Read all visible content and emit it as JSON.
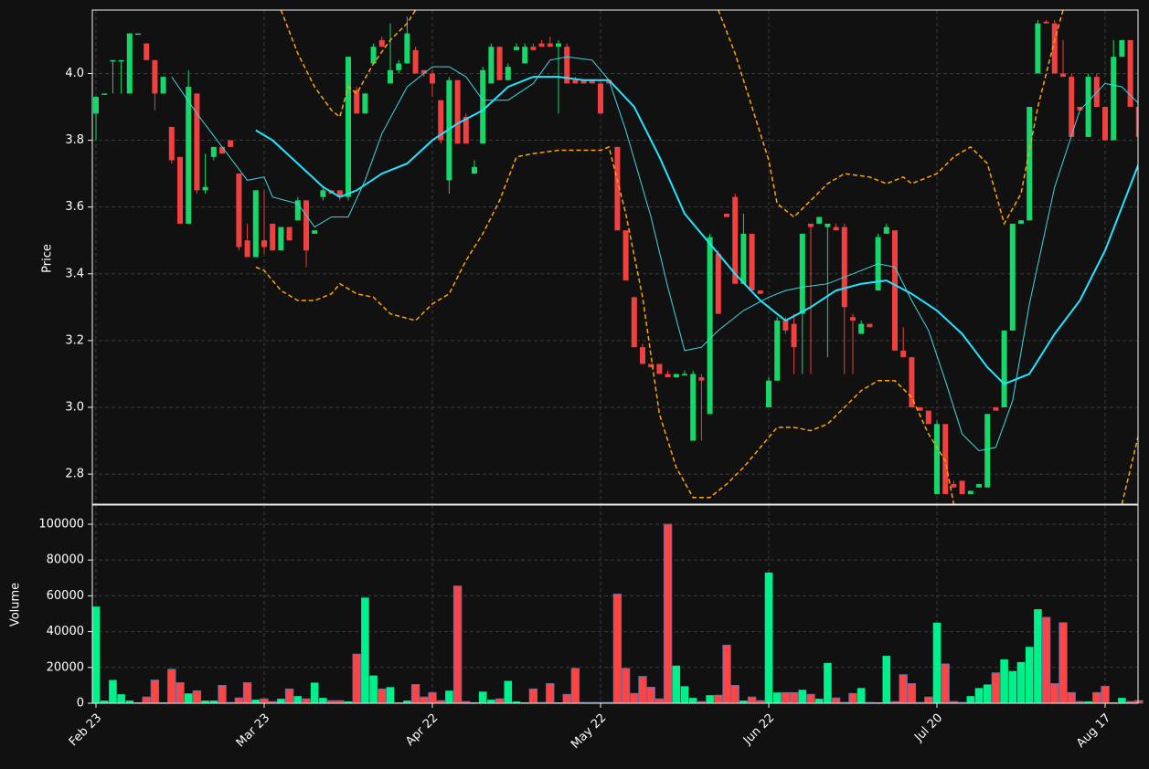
{
  "chart_data": {
    "type": "candlestick",
    "ylabel": "Price",
    "y2label": "Volume",
    "categories": [
      "Feb 23",
      null,
      null,
      null,
      null,
      null,
      null,
      null,
      null,
      null,
      null,
      null,
      null,
      null,
      null,
      null,
      null,
      null,
      null,
      null,
      "Mar 23",
      null,
      null,
      null,
      null,
      null,
      null,
      null,
      null,
      null,
      null,
      null,
      null,
      null,
      null,
      null,
      null,
      null,
      null,
      null,
      "Apr 22",
      null,
      null,
      null,
      null,
      null,
      null,
      null,
      null,
      null,
      null,
      null,
      null,
      null,
      null,
      null,
      null,
      null,
      null,
      null,
      "May 22",
      null,
      null,
      null,
      null,
      null,
      null,
      null,
      null,
      null,
      null,
      null,
      null,
      null,
      null,
      null,
      null,
      null,
      null,
      null,
      "Jun 22",
      null,
      null,
      null,
      null,
      null,
      null,
      null,
      null,
      null,
      null,
      null,
      null,
      null,
      null,
      null,
      null,
      null,
      null,
      null,
      "Jul 20",
      null,
      null,
      null,
      null,
      null,
      null,
      null,
      null,
      null,
      null,
      null,
      null,
      null,
      null,
      null,
      null,
      null,
      null,
      null,
      "Aug 17",
      null,
      null,
      null,
      null
    ],
    "open": [
      3.88,
      3.94,
      4.04,
      4.04,
      3.94,
      4.12,
      4.09,
      4.04,
      3.94,
      3.84,
      3.75,
      3.55,
      3.94,
      3.65,
      3.75,
      3.78,
      3.8,
      3.7,
      3.5,
      3.45,
      3.5,
      3.55,
      3.47,
      3.54,
      3.56,
      3.62,
      3.52,
      3.63,
      3.65,
      3.65,
      3.63,
      3.95,
      3.88,
      4.03,
      4.1,
      3.97,
      4.01,
      4.03,
      4.07,
      4.01,
      4.0,
      3.92,
      3.68,
      3.98,
      3.87,
      3.7,
      3.79,
      3.97,
      4.08,
      3.98,
      4.07,
      4.03,
      4.08,
      4.09,
      4.09,
      4.08,
      4.08,
      3.98,
      3.98,
      3.98,
      3.97,
      3.98,
      3.78,
      3.53,
      3.33,
      3.18,
      3.13,
      3.13,
      3.1,
      3.09,
      3.1,
      2.9,
      3.09,
      2.98,
      3.46,
      3.58,
      3.63,
      3.37,
      3.52,
      3.35,
      3.0,
      3.08,
      3.26,
      3.25,
      3.28,
      3.55,
      3.55,
      3.54,
      3.54,
      3.54,
      3.27,
      3.22,
      3.25,
      3.35,
      3.52,
      3.53,
      3.17,
      3.15,
      3.0,
      2.99,
      2.74,
      2.95,
      2.77,
      2.78,
      2.74,
      2.76,
      2.76,
      3.0,
      3.0,
      3.23,
      3.55,
      3.56,
      4.0,
      4.155,
      4.15,
      4.0,
      3.99,
      3.9,
      3.81,
      3.99,
      3.9,
      3.8,
      4.05,
      4.1,
      3.9
    ],
    "high": [
      3.93,
      3.94,
      4.04,
      4.04,
      4.12,
      4.12,
      4.09,
      4.04,
      3.99,
      3.84,
      3.75,
      4.01,
      3.94,
      3.76,
      3.78,
      3.78,
      3.8,
      3.7,
      3.55,
      3.65,
      3.65,
      3.55,
      3.54,
      3.54,
      3.63,
      3.62,
      3.53,
      3.66,
      3.65,
      3.65,
      4.05,
      3.96,
      3.94,
      4.09,
      4.11,
      4.15,
      4.04,
      4.17,
      4.08,
      4.01,
      4.01,
      3.92,
      3.99,
      3.98,
      3.88,
      3.74,
      4.02,
      4.09,
      4.08,
      4.03,
      4.09,
      4.09,
      4.09,
      4.1,
      4.11,
      4.1,
      4.09,
      3.99,
      3.98,
      3.98,
      3.98,
      3.98,
      3.78,
      3.53,
      3.33,
      3.19,
      3.13,
      3.13,
      3.11,
      3.1,
      3.11,
      3.11,
      3.1,
      3.52,
      3.47,
      3.58,
      3.64,
      3.58,
      3.52,
      3.35,
      3.09,
      3.27,
      3.27,
      3.28,
      3.52,
      3.55,
      3.57,
      3.55,
      3.55,
      3.55,
      3.28,
      3.26,
      3.25,
      3.52,
      3.55,
      3.53,
      3.24,
      3.15,
      3.0,
      2.99,
      2.96,
      2.95,
      2.78,
      2.78,
      2.75,
      2.77,
      2.98,
      3.0,
      3.23,
      3.55,
      3.56,
      3.9,
      4.16,
      4.16,
      4.16,
      4.1,
      4.0,
      3.9,
      4.0,
      4.0,
      3.9,
      4.1,
      4.1,
      4.1,
      3.91
    ],
    "low": [
      3.8,
      3.94,
      3.94,
      3.94,
      3.94,
      4.12,
      4.04,
      3.89,
      3.94,
      3.73,
      3.55,
      3.55,
      3.64,
      3.64,
      3.74,
      3.76,
      3.78,
      3.47,
      3.45,
      3.45,
      3.46,
      3.47,
      3.47,
      3.5,
      3.56,
      3.42,
      3.52,
      3.62,
      3.64,
      3.62,
      3.62,
      3.88,
      3.88,
      4.03,
      4.08,
      3.97,
      4.0,
      4.03,
      4.0,
      3.99,
      3.93,
      3.79,
      3.64,
      3.79,
      3.79,
      3.7,
      3.79,
      3.97,
      3.98,
      3.98,
      4.07,
      4.03,
      4.07,
      4.08,
      4.08,
      3.88,
      3.97,
      3.97,
      3.97,
      3.97,
      3.88,
      3.97,
      3.53,
      3.38,
      3.18,
      3.13,
      3.12,
      3.1,
      3.09,
      3.09,
      3.1,
      2.9,
      2.9,
      2.98,
      3.28,
      3.57,
      3.37,
      3.37,
      3.35,
      3.34,
      3.0,
      3.08,
      3.22,
      3.1,
      3.1,
      3.1,
      3.55,
      3.15,
      3.53,
      3.1,
      3.1,
      3.22,
      3.24,
      3.35,
      3.52,
      3.17,
      3.15,
      3.0,
      2.99,
      2.95,
      2.74,
      2.74,
      2.76,
      2.74,
      2.74,
      2.76,
      2.76,
      2.99,
      3.0,
      3.23,
      3.55,
      3.56,
      4.0,
      4.15,
      4.0,
      3.99,
      3.81,
      3.89,
      3.81,
      3.9,
      3.8,
      3.8,
      4.05,
      3.9,
      3.81
    ],
    "close": [
      3.93,
      3.94,
      4.04,
      4.04,
      4.12,
      4.12,
      4.04,
      3.94,
      3.99,
      3.74,
      3.55,
      3.96,
      3.65,
      3.66,
      3.78,
      3.76,
      3.78,
      3.48,
      3.45,
      3.65,
      3.48,
      3.47,
      3.54,
      3.5,
      3.62,
      3.47,
      3.53,
      3.65,
      3.64,
      3.63,
      4.05,
      3.88,
      3.94,
      4.08,
      4.08,
      4.01,
      4.03,
      4.12,
      4.0,
      4.0,
      3.97,
      3.8,
      3.98,
      3.79,
      3.79,
      3.72,
      4.01,
      4.08,
      3.98,
      4.02,
      4.08,
      4.08,
      4.07,
      4.08,
      4.08,
      4.09,
      3.97,
      3.97,
      3.97,
      3.97,
      3.88,
      3.97,
      3.53,
      3.38,
      3.18,
      3.13,
      3.12,
      3.1,
      3.09,
      3.1,
      3.1,
      3.1,
      3.08,
      3.51,
      3.28,
      3.57,
      3.37,
      3.52,
      3.35,
      3.34,
      3.08,
      3.26,
      3.23,
      3.18,
      3.52,
      3.54,
      3.57,
      3.55,
      3.53,
      3.3,
      3.26,
      3.25,
      3.24,
      3.51,
      3.54,
      3.17,
      3.15,
      3.0,
      2.99,
      2.95,
      2.95,
      2.74,
      2.76,
      2.74,
      2.75,
      2.77,
      2.98,
      2.99,
      3.23,
      3.55,
      3.56,
      3.9,
      4.15,
      4.15,
      4.0,
      3.99,
      3.81,
      3.89,
      3.99,
      3.9,
      3.8,
      4.05,
      4.1,
      3.9,
      3.81
    ],
    "volume": [
      54000,
      1500,
      13000,
      5000,
      1500,
      500,
      3500,
      13000,
      500,
      19000,
      11500,
      5500,
      7000,
      1500,
      1500,
      10000,
      500,
      3000,
      11500,
      2000,
      2500,
      1000,
      2500,
      8000,
      4000,
      2500,
      11500,
      3000,
      1500,
      1500,
      1000,
      27500,
      59000,
      15500,
      8000,
      9000,
      500,
      1500,
      10500,
      3500,
      6000,
      1500,
      7000,
      65500,
      1000,
      500,
      6500,
      2000,
      2500,
      12500,
      1000,
      500,
      8000,
      500,
      11000,
      500,
      5000,
      19500,
      500,
      500,
      500,
      500,
      61000,
      19500,
      5500,
      15000,
      9000,
      2500,
      100000,
      21000,
      9500,
      3000,
      1000,
      4500,
      4500,
      32500,
      10000,
      1500,
      3500,
      1500,
      73000,
      6000,
      6000,
      6000,
      7500,
      5000,
      2500,
      22500,
      3000,
      500,
      5500,
      8500,
      500,
      500,
      26500,
      1000,
      16000,
      11000,
      500,
      3500,
      45000,
      22000,
      1000,
      500,
      4000,
      8500,
      10500,
      17000,
      24500,
      18000,
      23000,
      31500,
      52500,
      48000,
      11000,
      45000,
      6000,
      1000,
      1000,
      6000,
      9500,
      500,
      3000,
      1000,
      1500
    ],
    "up_color": "#16d86a",
    "down_color": "#f0403f",
    "volume_up_color": "#00f08c",
    "volume_down_color": "#ff4444",
    "lines": [
      {
        "color": "#22e5ff",
        "width": 2,
        "dashed": false,
        "x": [
          19,
          21,
          24,
          27,
          29,
          31,
          34,
          37,
          40,
          43,
          46,
          49,
          52,
          55,
          58,
          61,
          64,
          67,
          70,
          73,
          76,
          79,
          82,
          85,
          88,
          91,
          94,
          97,
          100,
          103,
          106,
          108,
          111,
          114,
          117,
          120,
          122,
          124
        ],
        "values": [
          3.83,
          3.8,
          3.73,
          3.66,
          3.63,
          3.65,
          3.7,
          3.73,
          3.8,
          3.85,
          3.89,
          3.96,
          3.99,
          3.99,
          3.98,
          3.98,
          3.9,
          3.75,
          3.58,
          3.49,
          3.4,
          3.32,
          3.26,
          3.3,
          3.35,
          3.37,
          3.38,
          3.34,
          3.29,
          3.22,
          3.12,
          3.07,
          3.1,
          3.22,
          3.32,
          3.47,
          3.6,
          3.73
        ]
      },
      {
        "color": "#40d8e0",
        "width": 1,
        "dashed": false,
        "x": [
          9,
          12,
          15,
          18,
          20,
          21,
          24,
          26,
          28,
          30,
          32,
          34,
          37,
          40,
          42,
          44,
          46,
          49,
          52,
          54,
          56,
          59,
          61,
          63,
          66,
          68,
          70,
          72,
          74,
          77,
          80,
          82,
          84,
          87,
          90,
          93,
          95,
          97,
          99,
          101,
          103,
          105,
          107,
          109,
          111,
          114,
          117,
          120,
          122,
          124
        ],
        "values": [
          3.99,
          3.88,
          3.78,
          3.68,
          3.69,
          3.63,
          3.61,
          3.54,
          3.57,
          3.57,
          3.68,
          3.82,
          3.96,
          4.02,
          4.02,
          3.99,
          3.92,
          3.92,
          3.97,
          4.04,
          4.05,
          4.04,
          3.98,
          3.83,
          3.57,
          3.36,
          3.17,
          3.18,
          3.23,
          3.29,
          3.33,
          3.35,
          3.36,
          3.37,
          3.4,
          3.43,
          3.42,
          3.32,
          3.23,
          3.08,
          2.92,
          2.87,
          2.88,
          3.02,
          3.31,
          3.66,
          3.89,
          3.97,
          3.96,
          3.91
        ]
      },
      {
        "color": "#ffa500",
        "width": 1.5,
        "dashed": true,
        "x": [
          22,
          24,
          26,
          28,
          29,
          30,
          31,
          33,
          35,
          37,
          38,
          49,
          60,
          67,
          74,
          76,
          78,
          80,
          81,
          83,
          85,
          87,
          89,
          92,
          94,
          96,
          97,
          100,
          102,
          104,
          106,
          108,
          110,
          112,
          114,
          115
        ],
        "values": [
          4.19,
          4.06,
          3.96,
          3.89,
          3.87,
          3.96,
          3.94,
          4.03,
          4.1,
          4.15,
          4.19,
          null,
          4.185,
          null,
          4.19,
          4.06,
          3.9,
          3.74,
          3.61,
          3.57,
          3.62,
          3.67,
          3.7,
          3.69,
          3.67,
          3.69,
          3.67,
          3.7,
          3.75,
          3.78,
          3.73,
          3.55,
          3.64,
          3.9,
          4.1,
          4.19
        ]
      },
      {
        "color": "#ffa500",
        "width": 1.5,
        "dashed": true,
        "x": [
          19,
          20,
          22,
          24,
          26,
          28,
          29,
          31,
          33,
          35,
          38,
          40,
          42,
          44,
          46,
          48,
          50,
          52,
          55,
          58,
          60,
          61,
          63,
          65,
          67,
          69,
          71,
          73,
          75,
          77,
          79,
          81,
          83,
          85,
          87,
          89,
          91,
          93,
          95,
          97,
          99,
          101,
          102,
          112,
          122,
          124
        ],
        "values": [
          3.42,
          3.41,
          3.35,
          3.32,
          3.32,
          3.34,
          3.37,
          3.34,
          3.33,
          3.28,
          3.26,
          3.31,
          3.34,
          3.44,
          3.52,
          3.62,
          3.75,
          3.76,
          3.77,
          3.77,
          3.77,
          3.78,
          3.58,
          3.33,
          2.98,
          2.82,
          2.73,
          2.73,
          2.77,
          2.82,
          2.88,
          2.94,
          2.94,
          2.93,
          2.95,
          3.0,
          3.05,
          3.08,
          3.08,
          3.03,
          2.92,
          2.84,
          2.71,
          null,
          2.71,
          2.92
        ]
      }
    ],
    "ylim": [
      2.71,
      4.19
    ],
    "yticks": [
      2.8,
      {
        "value": 3,
        "label": "3.0"
      },
      3.2,
      3.4,
      3.6,
      3.8,
      {
        "value": 4,
        "label": "4.0"
      }
    ],
    "y2lim": [
      0,
      110700
    ],
    "y2ticks": [
      0,
      20000,
      40000,
      60000,
      80000,
      100000
    ],
    "grid": true
  }
}
